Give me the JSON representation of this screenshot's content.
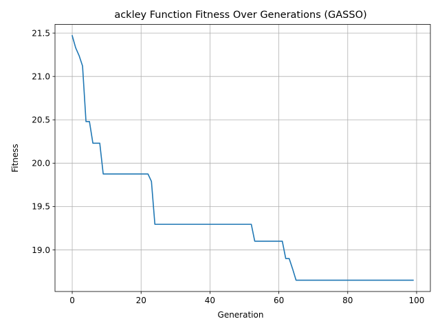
{
  "chart_data": {
    "type": "line",
    "title": "ackley Function Fitness Over Generations (GASSO)",
    "xlabel": "Generation",
    "ylabel": "Fitness",
    "xlim": [
      -5,
      104
    ],
    "ylim": [
      18.52,
      21.6
    ],
    "xticks": [
      0,
      20,
      40,
      60,
      80,
      100
    ],
    "yticks": [
      19.0,
      19.5,
      20.0,
      20.5,
      21.0,
      21.5
    ],
    "xtick_labels": [
      "0",
      "20",
      "40",
      "60",
      "80",
      "100"
    ],
    "ytick_labels": [
      "19.0",
      "19.5",
      "20.0",
      "20.5",
      "21.0",
      "21.5"
    ],
    "grid": true,
    "line_color": "#1f77b4",
    "series": [
      {
        "x": [
          0,
          1,
          2,
          3,
          4,
          5,
          6,
          7,
          8,
          9,
          22,
          23,
          24,
          52,
          53,
          61,
          62,
          63,
          64,
          65,
          99
        ],
        "values": [
          21.47,
          21.33,
          21.24,
          21.12,
          20.48,
          20.48,
          20.23,
          20.23,
          20.23,
          19.875,
          19.875,
          19.79,
          19.295,
          19.295,
          19.1,
          19.1,
          18.9,
          18.9,
          18.78,
          18.65,
          18.65
        ]
      }
    ]
  }
}
